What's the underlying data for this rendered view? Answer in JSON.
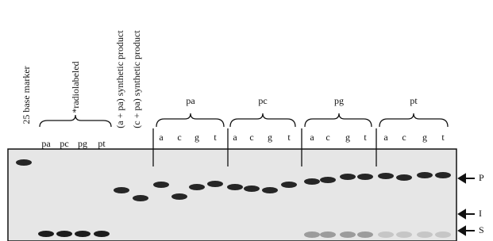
{
  "marker_label": "25 base marker",
  "radiolabeled_label": "*radiolabeled",
  "left_lanes": [
    "pa",
    "pc",
    "pg",
    "pt"
  ],
  "synthetic_labels": [
    "(a + pa) synthetic product",
    "(c + pa) synthetic product"
  ],
  "groups": [
    {
      "label": "pa",
      "lanes": [
        "a",
        "c",
        "g",
        "t"
      ]
    },
    {
      "label": "pc",
      "lanes": [
        "a",
        "c",
        "g",
        "t"
      ]
    },
    {
      "label": "pg",
      "lanes": [
        "a",
        "c",
        "g",
        "t"
      ]
    },
    {
      "label": "pt",
      "lanes": [
        "a",
        "c",
        "g",
        "t"
      ]
    }
  ],
  "band_markers": [
    "P",
    "I",
    "S"
  ]
}
